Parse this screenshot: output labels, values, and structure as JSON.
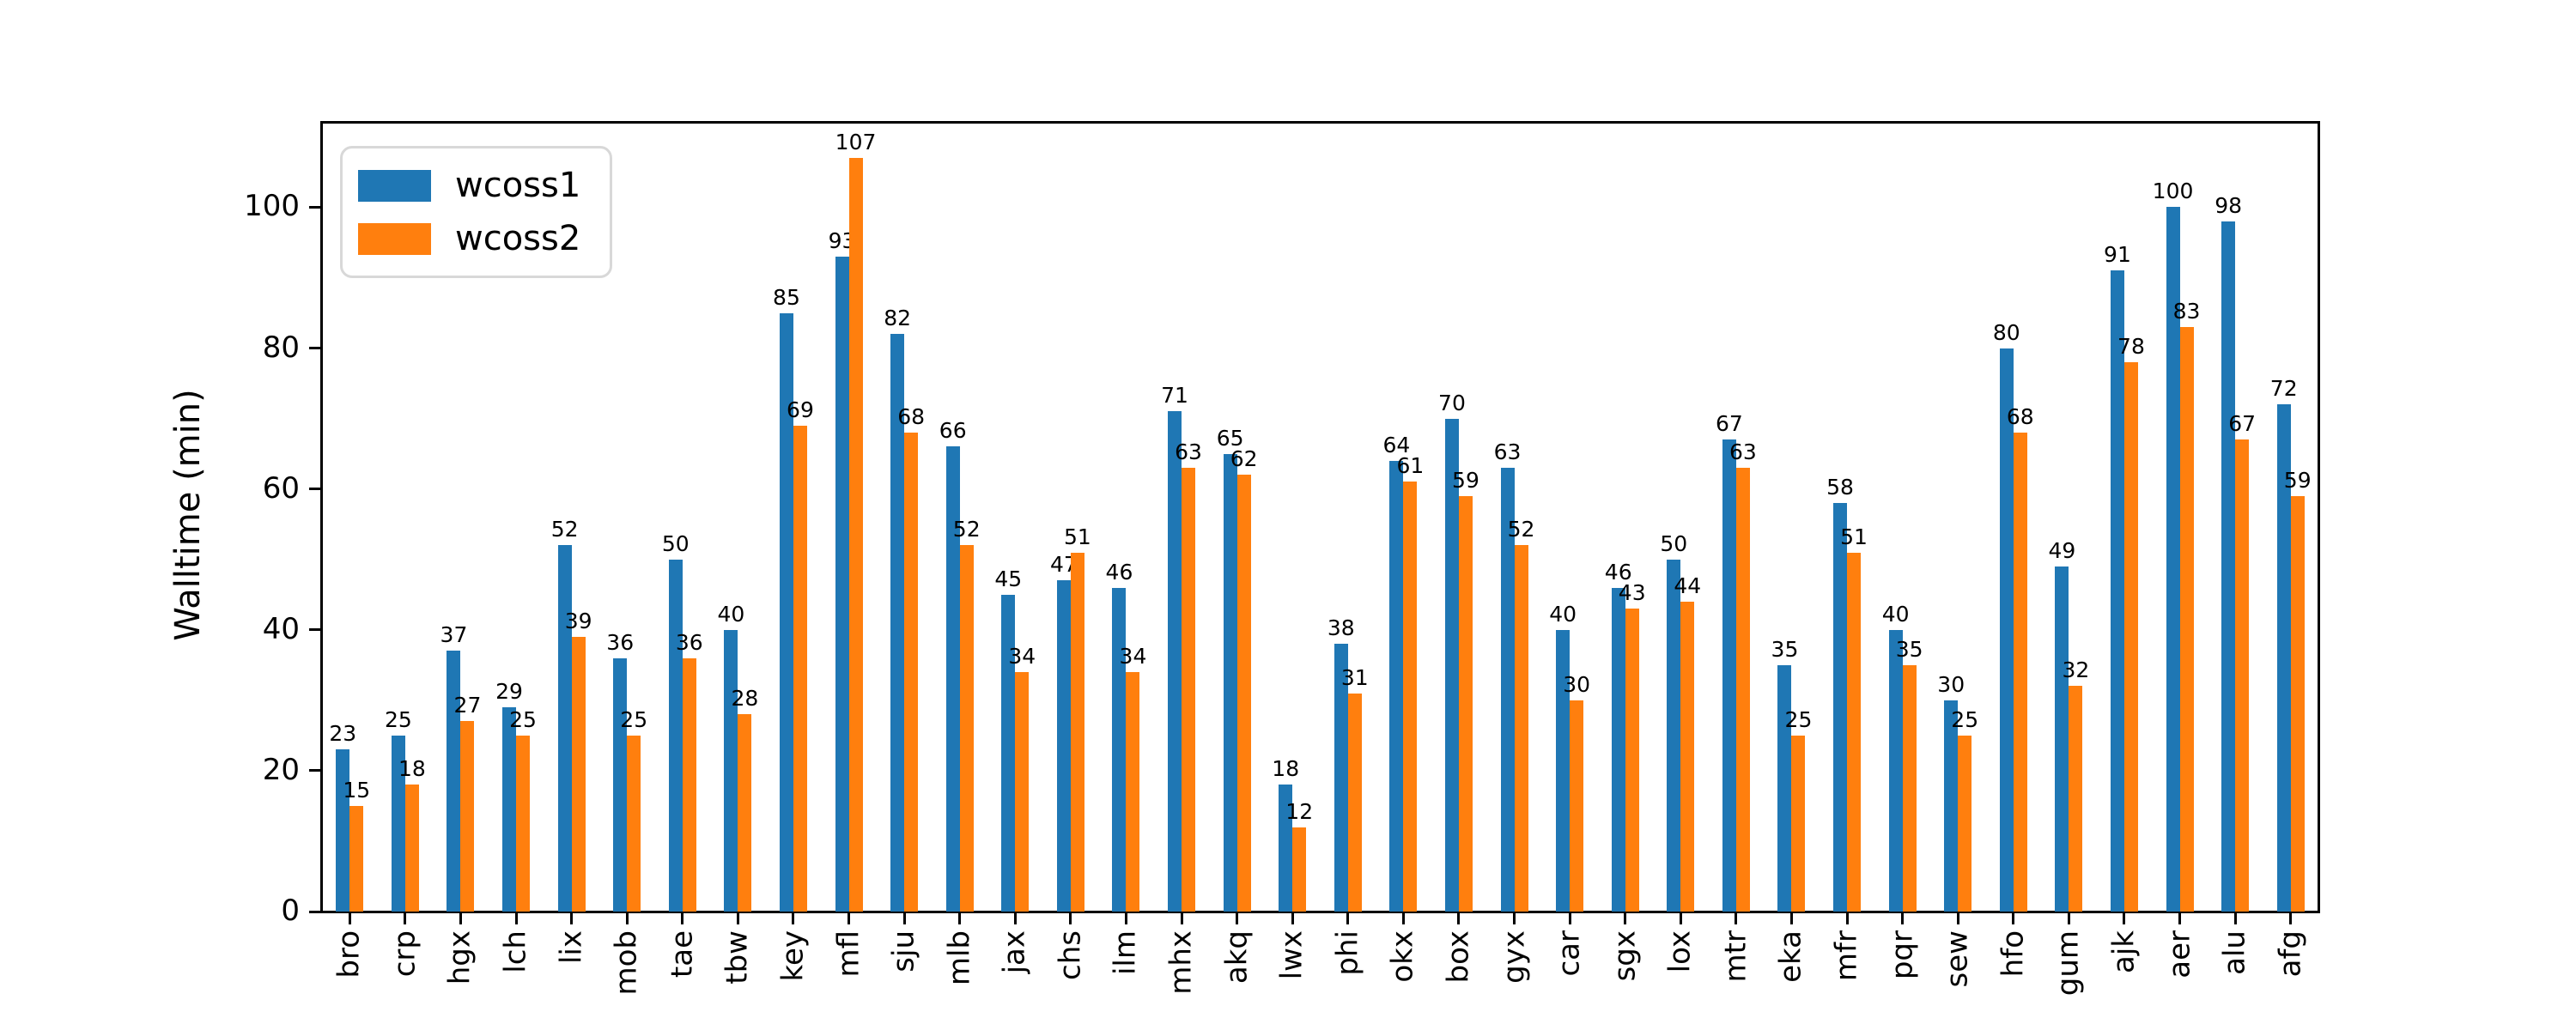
{
  "figure": {
    "background": "#ffffff"
  },
  "chart_data": {
    "type": "bar",
    "title": "",
    "xlabel": "",
    "ylabel": "Walltime (min)",
    "ylim": [
      0,
      112
    ],
    "yticks": [
      0,
      20,
      40,
      60,
      80,
      100
    ],
    "grid": false,
    "legend_position": "upper left",
    "bar_value_labels": true,
    "categories": [
      "bro",
      "crp",
      "hgx",
      "lch",
      "lix",
      "mob",
      "tae",
      "tbw",
      "key",
      "mfl",
      "sju",
      "mlb",
      "jax",
      "chs",
      "ilm",
      "mhx",
      "akq",
      "lwx",
      "phi",
      "okx",
      "box",
      "gyx",
      "car",
      "sgx",
      "lox",
      "mtr",
      "eka",
      "mfr",
      "pqr",
      "sew",
      "hfo",
      "gum",
      "ajk",
      "aer",
      "alu",
      "afg"
    ],
    "series": [
      {
        "name": "wcoss1",
        "color": "#1f77b4",
        "values": [
          23,
          25,
          37,
          29,
          52,
          36,
          50,
          40,
          85,
          93,
          82,
          66,
          45,
          47,
          46,
          71,
          65,
          18,
          38,
          64,
          70,
          63,
          40,
          46,
          50,
          67,
          35,
          58,
          40,
          30,
          80,
          49,
          91,
          100,
          98,
          72
        ]
      },
      {
        "name": "wcoss2",
        "color": "#ff7f0e",
        "values": [
          15,
          18,
          27,
          25,
          39,
          25,
          36,
          28,
          69,
          107,
          68,
          52,
          34,
          51,
          34,
          63,
          62,
          12,
          31,
          61,
          59,
          52,
          30,
          43,
          44,
          63,
          25,
          51,
          35,
          25,
          68,
          32,
          78,
          83,
          67,
          59
        ]
      }
    ]
  }
}
